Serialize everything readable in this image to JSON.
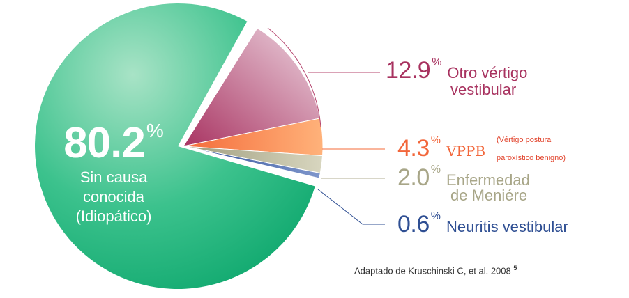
{
  "chart_data": {
    "type": "pie",
    "title": "",
    "slices": [
      {
        "name_lines": [
          "Sin causa",
          "conocida",
          "(Idiopático)"
        ],
        "value": 80.2,
        "color": "#19b37a"
      },
      {
        "name_lines": [
          "Otro vértigo",
          "vestibular"
        ],
        "value": 12.9,
        "color": "#b5446e"
      },
      {
        "name_lines": [
          "VPPB",
          "(Vértigo postural",
          "paroxístico benigno)"
        ],
        "value": 4.3,
        "color": "#f88a4c"
      },
      {
        "name_lines": [
          "Enfermedad",
          "de Meniére"
        ],
        "value": 2.0,
        "color": "#b0ae90"
      },
      {
        "name_lines": [
          "Neuritis vestibular"
        ],
        "value": 0.6,
        "color": "#3d5a9e"
      }
    ]
  },
  "labels": {
    "main": {
      "value": "80.2",
      "unit": "%",
      "line1": "Sin causa",
      "line2": "conocida",
      "line3": "(Idiopático)"
    },
    "otro": {
      "value": "12.9",
      "unit": "%",
      "line1": "Otro vértigo",
      "line2": "vestibular"
    },
    "vppb": {
      "value": "4.3",
      "unit": "%",
      "name": "VPPB",
      "note1": "(Vértigo postural",
      "note2": "paroxístico benigno)"
    },
    "meniere": {
      "value": "2.0",
      "unit": "%",
      "line1": "Enfermedad",
      "line2": "de Meniére"
    },
    "neuritis": {
      "value": "0.6",
      "unit": "%",
      "name": "Neuritis vestibular"
    }
  },
  "source": {
    "text": "Adaptado de Kruschinski C, et al. 2008",
    "ref": "5"
  }
}
